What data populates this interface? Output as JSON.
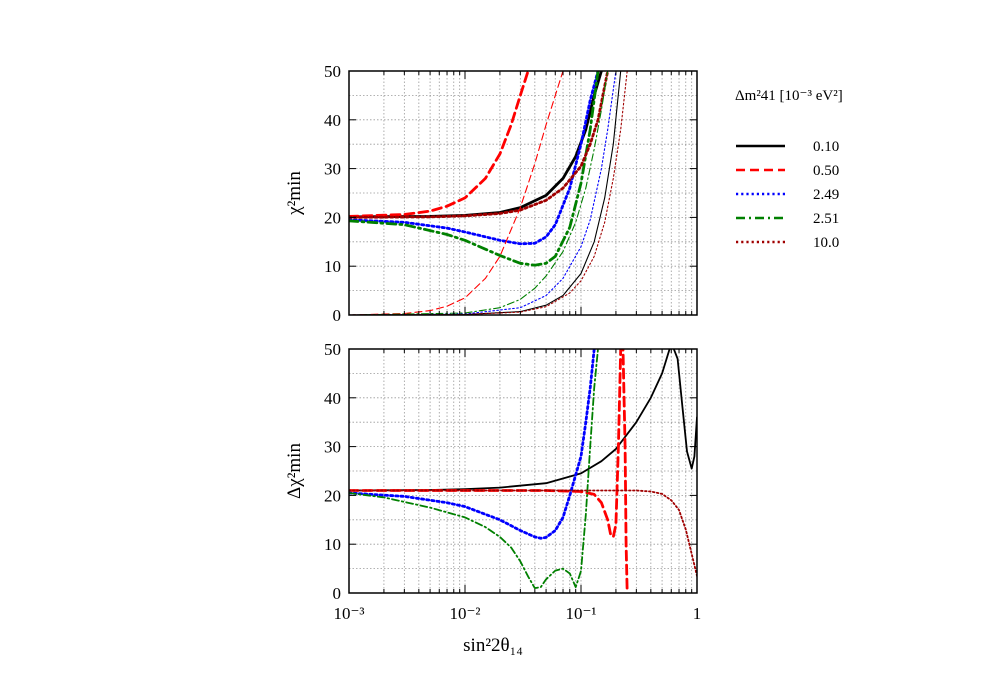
{
  "chart_data": [
    {
      "type": "line",
      "panel": "top",
      "xlabel": "",
      "ylabel": "χ²min",
      "xscale": "log",
      "xlim": [
        0.001,
        1
      ],
      "ylim": [
        0,
        50
      ],
      "yticks": [
        "0",
        "10",
        "20",
        "30",
        "40",
        "50"
      ],
      "grid": true,
      "series": [
        {
          "name": "0.10",
          "color": "#000000",
          "style": "solid",
          "width": "thick",
          "x": [
            0.001,
            0.005,
            0.01,
            0.02,
            0.03,
            0.05,
            0.07,
            0.09,
            0.11,
            0.13,
            0.15
          ],
          "y": [
            20.1,
            20.2,
            20.4,
            21,
            22,
            24.5,
            28,
            32.5,
            38,
            45,
            50
          ]
        },
        {
          "name": "0.50",
          "color": "#ff0000",
          "style": "dashed",
          "width": "thick",
          "x": [
            0.001,
            0.003,
            0.005,
            0.007,
            0.01,
            0.015,
            0.02,
            0.025,
            0.03,
            0.035
          ],
          "y": [
            20.2,
            20.6,
            21.3,
            22.3,
            24,
            28,
            33,
            39,
            45,
            50
          ]
        },
        {
          "name": "2.49",
          "color": "#0000ff",
          "style": "dotted",
          "width": "thick",
          "x": [
            0.001,
            0.003,
            0.007,
            0.01,
            0.02,
            0.03,
            0.04,
            0.05,
            0.06,
            0.08,
            0.1,
            0.12,
            0.14
          ],
          "y": [
            19.5,
            19,
            17.8,
            17,
            15.3,
            14.6,
            14.7,
            16,
            18.5,
            26,
            35,
            44,
            50
          ]
        },
        {
          "name": "2.51",
          "color": "#008000",
          "style": "dashdot",
          "width": "thick",
          "x": [
            0.001,
            0.003,
            0.007,
            0.01,
            0.02,
            0.03,
            0.04,
            0.05,
            0.06,
            0.08,
            0.1,
            0.12,
            0.14
          ],
          "y": [
            19.3,
            18.5,
            16.5,
            15.3,
            12.2,
            10.6,
            10.2,
            10.6,
            12,
            18,
            27,
            38,
            50
          ]
        },
        {
          "name": "10.0",
          "color": "#a00000",
          "style": "dotted",
          "width": "thick",
          "x": [
            0.001,
            0.005,
            0.01,
            0.02,
            0.03,
            0.05,
            0.07,
            0.1,
            0.12,
            0.14,
            0.17
          ],
          "y": [
            20,
            20.1,
            20.3,
            20.8,
            21.5,
            23.5,
            26,
            30.5,
            35,
            40,
            50
          ]
        },
        {
          "name": "",
          "color": "#000000",
          "style": "solid",
          "width": "thin",
          "x": [
            0.001,
            0.01,
            0.03,
            0.05,
            0.07,
            0.1,
            0.13,
            0.16,
            0.19,
            0.22
          ],
          "y": [
            0,
            0.1,
            0.7,
            2,
            4,
            8.5,
            15,
            24,
            35,
            50
          ]
        },
        {
          "name": "",
          "color": "#ff0000",
          "style": "dashed",
          "width": "thin",
          "x": [
            0.001,
            0.003,
            0.005,
            0.007,
            0.01,
            0.015,
            0.02,
            0.03,
            0.04,
            0.05,
            0.06,
            0.07
          ],
          "y": [
            0,
            0.3,
            0.9,
            1.8,
            3.5,
            7.5,
            12,
            22,
            31,
            39,
            45,
            50
          ]
        },
        {
          "name": "",
          "color": "#0000ff",
          "style": "dotted",
          "width": "thin",
          "x": [
            0.001,
            0.01,
            0.03,
            0.05,
            0.07,
            0.1,
            0.12,
            0.15,
            0.17,
            0.2
          ],
          "y": [
            0,
            0.2,
            1.5,
            4,
            7.5,
            14,
            19.5,
            30,
            38,
            50
          ]
        },
        {
          "name": "",
          "color": "#008000",
          "style": "dashdot",
          "width": "thin",
          "x": [
            0.001,
            0.01,
            0.02,
            0.03,
            0.04,
            0.05,
            0.07,
            0.09,
            0.11,
            0.13,
            0.15,
            0.17
          ],
          "y": [
            0,
            0.4,
            1.5,
            3.2,
            5.5,
            8,
            13,
            19,
            26,
            34,
            42,
            50
          ]
        },
        {
          "name": "",
          "color": "#a00000",
          "style": "dotted",
          "width": "thin",
          "x": [
            0.001,
            0.01,
            0.03,
            0.05,
            0.08,
            0.1,
            0.13,
            0.16,
            0.19,
            0.22,
            0.25
          ],
          "y": [
            0,
            0.1,
            0.6,
            1.7,
            4.5,
            7,
            12,
            19,
            28,
            38,
            50
          ]
        }
      ]
    },
    {
      "type": "line",
      "panel": "bottom",
      "xlabel": "sin²2θ₁₄",
      "ylabel": "Δχ²min",
      "xscale": "log",
      "xlim": [
        0.001,
        1
      ],
      "ylim": [
        0,
        50
      ],
      "xticks": [
        "10⁻³",
        "10⁻²",
        "10⁻¹",
        "1"
      ],
      "yticks": [
        "0",
        "10",
        "20",
        "30",
        "40",
        "50"
      ],
      "grid": true,
      "series": [
        {
          "name": "0.10",
          "color": "#000000",
          "style": "solid",
          "width": "normal",
          "x": [
            0.001,
            0.005,
            0.01,
            0.02,
            0.05,
            0.1,
            0.15,
            0.2,
            0.3,
            0.4,
            0.5,
            0.58,
            0.62,
            0.68,
            0.75,
            0.82,
            0.9,
            0.95,
            1.0
          ],
          "y": [
            21,
            21.1,
            21.3,
            21.6,
            22.5,
            24.5,
            27,
            29.5,
            35,
            40,
            45,
            50,
            50.5,
            48,
            38,
            29,
            25.5,
            28,
            36
          ]
        },
        {
          "name": "0.50",
          "color": "#ff0000",
          "style": "dashed",
          "width": "thick",
          "x": [
            0.001,
            0.01,
            0.05,
            0.1,
            0.13,
            0.15,
            0.17,
            0.18,
            0.19,
            0.2,
            0.21,
            0.22,
            0.23,
            0.24,
            0.245,
            0.25
          ],
          "y": [
            21,
            21,
            21,
            20.8,
            20.2,
            18.5,
            15,
            12,
            11.5,
            14,
            30,
            50,
            50,
            30,
            10,
            0
          ]
        },
        {
          "name": "2.49",
          "color": "#0000ff",
          "style": "dotted",
          "width": "thick",
          "x": [
            0.001,
            0.003,
            0.007,
            0.01,
            0.02,
            0.03,
            0.04,
            0.045,
            0.05,
            0.06,
            0.07,
            0.08,
            0.1,
            0.11,
            0.12,
            0.13
          ],
          "y": [
            20.5,
            19.8,
            18.5,
            17.7,
            15,
            12.8,
            11.5,
            11.2,
            11.4,
            12.8,
            15.5,
            20,
            28,
            35,
            42,
            50
          ]
        },
        {
          "name": "2.51",
          "color": "#008000",
          "style": "dashdot",
          "width": "normal",
          "x": [
            0.001,
            0.002,
            0.005,
            0.01,
            0.015,
            0.02,
            0.025,
            0.03,
            0.035,
            0.04,
            0.045,
            0.05,
            0.06,
            0.07,
            0.08,
            0.09,
            0.1,
            0.11,
            0.12,
            0.13,
            0.14
          ],
          "y": [
            20.5,
            19.6,
            17.5,
            15.5,
            13.5,
            11.5,
            9.3,
            6.5,
            3.4,
            1,
            1.2,
            2.8,
            4.6,
            5,
            4,
            1.2,
            4.5,
            16,
            30,
            42,
            50
          ]
        },
        {
          "name": "10.0",
          "color": "#a00000",
          "style": "dotted",
          "width": "normal",
          "x": [
            0.001,
            0.01,
            0.05,
            0.1,
            0.2,
            0.3,
            0.4,
            0.5,
            0.6,
            0.7,
            0.8,
            0.9,
            1.0
          ],
          "y": [
            21,
            21,
            21,
            21,
            21,
            21,
            20.8,
            20.3,
            19,
            17,
            13,
            8,
            3.5
          ]
        }
      ]
    }
  ],
  "legend": {
    "title": "Δm²41 [10⁻³ eV²]",
    "placement": "right",
    "items": [
      {
        "label": "0.10",
        "color": "#000000",
        "style": "solid"
      },
      {
        "label": "0.50",
        "color": "#ff0000",
        "style": "dashed"
      },
      {
        "label": "2.49",
        "color": "#0000ff",
        "style": "dotted"
      },
      {
        "label": "2.51",
        "color": "#008000",
        "style": "dashdot"
      },
      {
        "label": "10.0",
        "color": "#a00000",
        "style": "dotted"
      }
    ]
  }
}
